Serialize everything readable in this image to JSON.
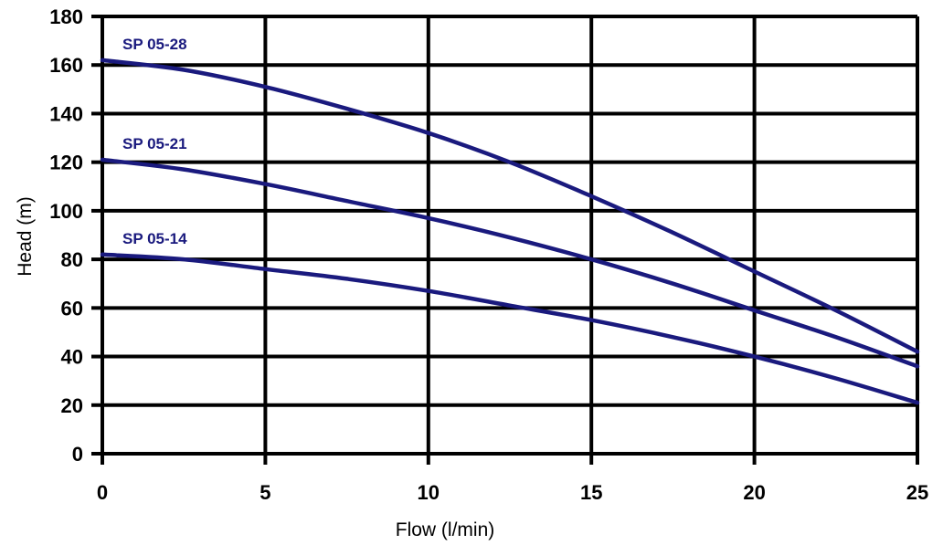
{
  "chart_data": {
    "type": "line",
    "title": "",
    "xlabel": "Flow (l/min)",
    "ylabel": "Head (m)",
    "xlim": [
      0,
      25
    ],
    "ylim": [
      0,
      180
    ],
    "xticks": [
      0,
      5,
      10,
      15,
      20,
      25
    ],
    "yticks": [
      0,
      20,
      40,
      60,
      80,
      100,
      120,
      140,
      160,
      180
    ],
    "grid": true,
    "line_color": "#1a1a7e",
    "series": [
      {
        "name": "SP 05-28",
        "x": [
          0,
          2.5,
          5,
          7.5,
          10,
          12.5,
          15,
          17.5,
          20,
          22.5,
          25
        ],
        "y": [
          162,
          158,
          151,
          142,
          132,
          120,
          106,
          91,
          75,
          59,
          42
        ]
      },
      {
        "name": "SP 05-21",
        "x": [
          0,
          2.5,
          5,
          7.5,
          10,
          12.5,
          15,
          17.5,
          20,
          22.5,
          25
        ],
        "y": [
          121,
          117,
          111,
          104,
          97,
          89,
          80,
          70,
          59,
          48,
          36
        ]
      },
      {
        "name": "SP 05-14",
        "x": [
          0,
          2.5,
          5,
          7.5,
          10,
          12.5,
          15,
          17.5,
          20,
          22.5,
          25
        ],
        "y": [
          82,
          80,
          76,
          72,
          67,
          61,
          55,
          48,
          40,
          31,
          21
        ]
      }
    ]
  }
}
